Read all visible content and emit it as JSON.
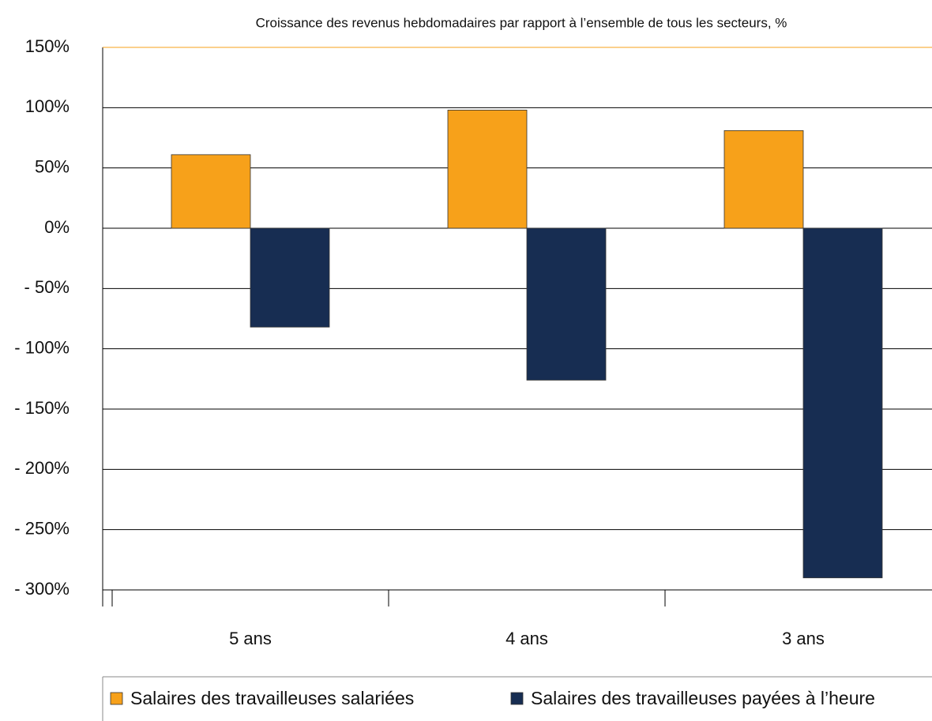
{
  "chart_data": {
    "type": "bar",
    "title": "Croissance des revenus hebdomadaires par rapport à l’ensemble de tous les secteurs, %",
    "categories": [
      "5 ans",
      "4 ans",
      "3 ans"
    ],
    "series": [
      {
        "name": "Salaires des travailleuses salariées",
        "color": "#f7a11a",
        "values": [
          61,
          98,
          81
        ]
      },
      {
        "name": "Salaires des travailleuses payées à l’heure",
        "color": "#172d52",
        "values": [
          -82,
          -126,
          -290
        ]
      }
    ],
    "ylim": [
      -300,
      150
    ],
    "yticks": [
      {
        "value": 150,
        "label": "150%"
      },
      {
        "value": 100,
        "label": "100%"
      },
      {
        "value": 50,
        "label": "50%"
      },
      {
        "value": 0,
        "label": "0%"
      },
      {
        "value": -50,
        "label": "- 50%"
      },
      {
        "value": -100,
        "label": "- 100%"
      },
      {
        "value": -150,
        "label": "- 150%"
      },
      {
        "value": -200,
        "label": "- 200%"
      },
      {
        "value": -250,
        "label": "- 250%"
      },
      {
        "value": -300,
        "label": "- 300%"
      }
    ],
    "grid": true,
    "legend": "bottom"
  }
}
